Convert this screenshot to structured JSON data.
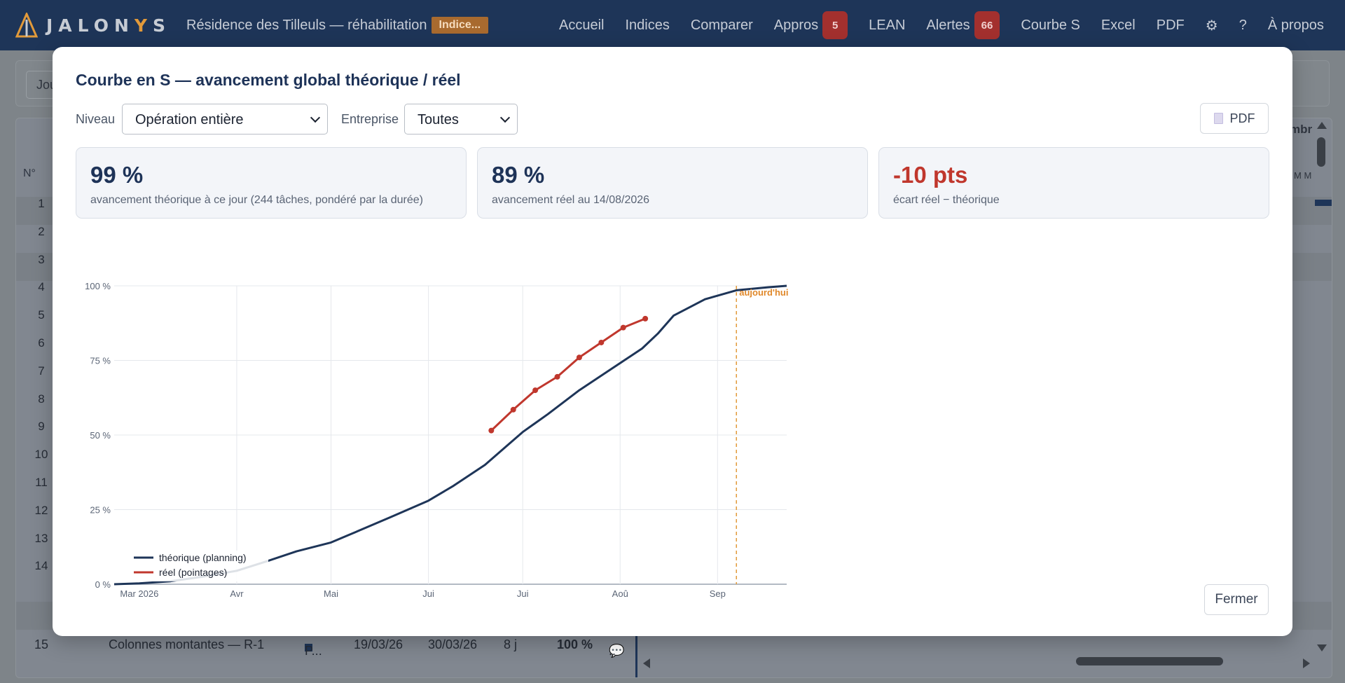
{
  "app": {
    "logo_prefix": "JALON",
    "logo_accent": "Y",
    "logo_suffix": "S",
    "project_title": "Résidence des Tilleuls — réhabilitation",
    "project_badge": "Indice..."
  },
  "nav": {
    "accueil": "Accueil",
    "indices": "Indices",
    "comparer": "Comparer",
    "appros": "Appros",
    "appros_count": "5",
    "lean": "LEAN",
    "alertes": "Alertes",
    "alertes_count": "66",
    "courbe_s": "Courbe S",
    "excel": "Excel",
    "pdf": "PDF",
    "settings_icon": "⚙",
    "help": "?",
    "a_propos": "À propos"
  },
  "background": {
    "toolbar_button": "Jou",
    "col_num": "N°",
    "col_right_fragment": "mbr",
    "col_right_days": "M  M",
    "row_numbers": [
      "1",
      "2",
      "3",
      "4",
      "5",
      "6",
      "7",
      "8",
      "9",
      "10",
      "11",
      "12",
      "13",
      "14",
      "15"
    ],
    "row15": {
      "name": "Colonnes montantes — R-1",
      "lot": "P...",
      "start": "19/03/26",
      "end": "30/03/26",
      "duration": "8 j",
      "progress": "100 %",
      "comment": ".."
    }
  },
  "modal": {
    "title": "Courbe en S — avancement global théorique / réel",
    "niveau_label": "Niveau",
    "niveau_value": "Opération entière",
    "entreprise_label": "Entreprise",
    "entreprise_value": "Toutes",
    "pdf_button": "PDF",
    "close_button": "Fermer",
    "cards": [
      {
        "value": "99 %",
        "label": "avancement théorique à ce jour (244 tâches, pondéré par la durée)"
      },
      {
        "value": "89 %",
        "label": "avancement réel au 14/08/2026"
      },
      {
        "value": "-10 pts",
        "label": "écart réel − théorique"
      }
    ]
  },
  "chart_data": {
    "type": "line",
    "y_ticks": [
      "0 %",
      "25 %",
      "50 %",
      "75 %",
      "100 %"
    ],
    "ylim": [
      0,
      100
    ],
    "x_ticks": [
      "Mar 2026",
      "Avr",
      "Mai",
      "Jui",
      "Jui",
      "Aoû",
      "Sep"
    ],
    "x_tick_days": [
      0,
      31,
      61,
      92,
      122,
      153,
      184
    ],
    "xlim_days": [
      -8,
      206
    ],
    "today_label": "aujourd'hui",
    "today_day": 190,
    "series": [
      {
        "name": "théorique (planning)",
        "color": "#1e3558",
        "x_days": [
          -8,
          0,
          10,
          20,
          31,
          40,
          50,
          61,
          70,
          80,
          92,
          100,
          110,
          122,
          130,
          140,
          150,
          160,
          165,
          170,
          180,
          190,
          200,
          206
        ],
        "values": [
          0,
          0.3,
          1,
          2.5,
          4.5,
          7.5,
          11,
          14,
          18,
          22.5,
          28,
          33,
          40,
          51,
          57,
          65,
          72,
          79,
          84,
          90,
          95.5,
          98.5,
          99.5,
          100
        ]
      },
      {
        "name": "réel (pointages)",
        "color": "#c0372d",
        "x_days": [
          112,
          119,
          126,
          133,
          140,
          147,
          154,
          161
        ],
        "values": [
          51.5,
          58.5,
          65,
          69.5,
          76,
          81,
          86,
          89
        ]
      }
    ]
  }
}
